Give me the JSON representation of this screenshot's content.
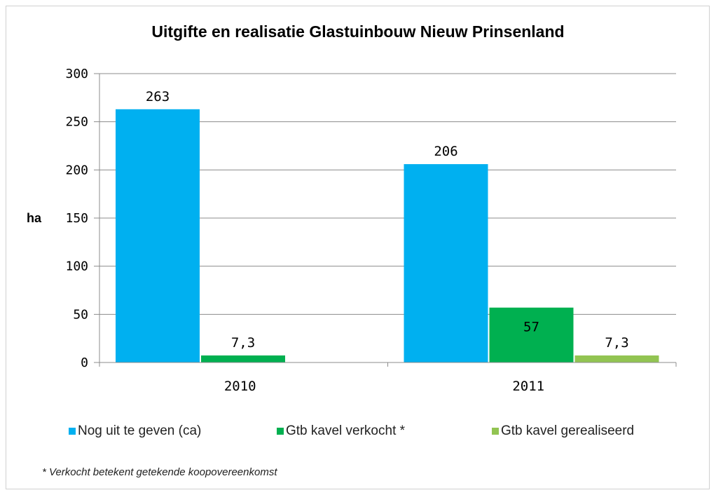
{
  "chart_data": {
    "type": "bar",
    "title": "Uitgifte en realisatie Glastuinbouw Nieuw Prinsenland",
    "ylabel": "ha",
    "xlabel": "",
    "ylim": [
      0,
      300
    ],
    "yticks": [
      0,
      50,
      100,
      150,
      200,
      250,
      300
    ],
    "grid": true,
    "categories": [
      "2010",
      "2011"
    ],
    "series": [
      {
        "name": "Nog uit te geven (ca)",
        "color": "#00B0F0",
        "values": [
          263,
          206
        ],
        "labels": [
          "263",
          "206"
        ]
      },
      {
        "name": "Gtb kavel verkocht *",
        "color": "#00B050",
        "values": [
          7.3,
          57
        ],
        "labels": [
          "7,3",
          "57"
        ]
      },
      {
        "name": "Gtb kavel gerealiseerd",
        "color": "#92C452",
        "values": [
          null,
          7.3
        ],
        "labels": [
          "",
          "7,3"
        ]
      }
    ],
    "legend_position": "bottom",
    "footnote": "* Verkocht betekent getekende  koopovereenkomst"
  }
}
